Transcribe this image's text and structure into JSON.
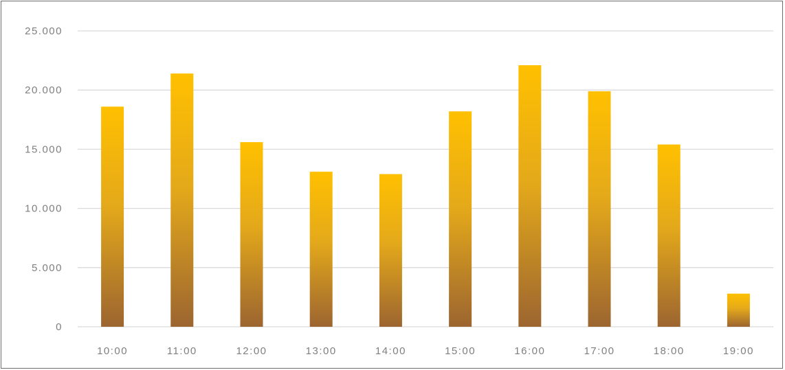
{
  "chart_data": {
    "type": "bar",
    "title": "",
    "xlabel": "",
    "ylabel": "",
    "categories": [
      "10:00",
      "11:00",
      "12:00",
      "13:00",
      "14:00",
      "15:00",
      "16:00",
      "17:00",
      "18:00",
      "19:00"
    ],
    "values": [
      18600,
      21400,
      15600,
      13100,
      12900,
      18200,
      22100,
      19900,
      15400,
      2800
    ],
    "ylim": [
      0,
      25000
    ],
    "yticks": [
      0,
      5000,
      10000,
      15000,
      20000,
      25000
    ],
    "ytick_labels": [
      "0",
      "5.000",
      "10.000",
      "15.000",
      "20.000",
      "25.000"
    ],
    "grid": true,
    "legend": "none",
    "colors": {
      "bar_top": "#ffc000",
      "bar_bottom": "#9c6530",
      "grid": "#d9d9d9",
      "tick_text": "#7f7f7f",
      "border": "#6b6b6b"
    }
  }
}
